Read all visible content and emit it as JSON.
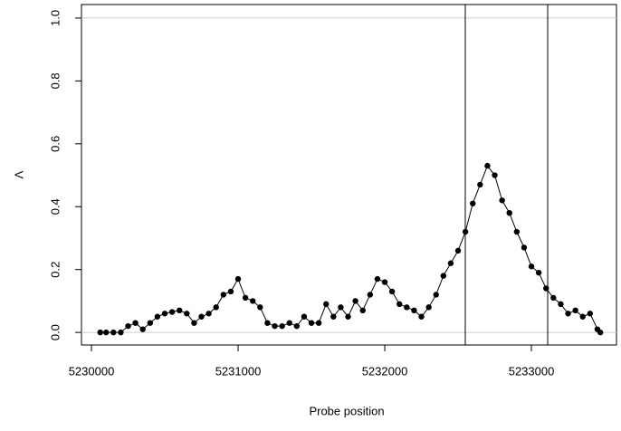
{
  "chart_data": {
    "type": "line",
    "x_label": "Probe position",
    "y_label": "Λ",
    "x": [
      5230060,
      5230100,
      5230150,
      5230200,
      5230250,
      5230300,
      5230350,
      5230400,
      5230450,
      5230500,
      5230550,
      5230600,
      5230650,
      5230700,
      5230750,
      5230800,
      5230850,
      5230900,
      5230950,
      5231000,
      5231050,
      5231100,
      5231150,
      5231200,
      5231250,
      5231300,
      5231350,
      5231400,
      5231450,
      5231500,
      5231550,
      5231600,
      5231650,
      5231700,
      5231750,
      5231800,
      5231850,
      5231900,
      5231950,
      5232000,
      5232050,
      5232100,
      5232150,
      5232200,
      5232250,
      5232300,
      5232350,
      5232400,
      5232450,
      5232500,
      5232550,
      5232600,
      5232650,
      5232700,
      5232750,
      5232800,
      5232850,
      5232900,
      5232950,
      5233000,
      5233050,
      5233100,
      5233150,
      5233200,
      5233250,
      5233300,
      5233350,
      5233400,
      5233450,
      5233470
    ],
    "series": [
      {
        "name": "Λ",
        "color": "#000000",
        "values": [
          0.0,
          0.0,
          0.0,
          0.0,
          0.02,
          0.03,
          0.01,
          0.03,
          0.05,
          0.06,
          0.065,
          0.07,
          0.06,
          0.03,
          0.05,
          0.06,
          0.08,
          0.12,
          0.13,
          0.17,
          0.11,
          0.1,
          0.08,
          0.03,
          0.02,
          0.02,
          0.03,
          0.02,
          0.05,
          0.03,
          0.03,
          0.09,
          0.05,
          0.08,
          0.05,
          0.1,
          0.07,
          0.12,
          0.17,
          0.16,
          0.13,
          0.09,
          0.08,
          0.07,
          0.05,
          0.08,
          0.12,
          0.18,
          0.22,
          0.26,
          0.32,
          0.41,
          0.47,
          0.53,
          0.5,
          0.42,
          0.38,
          0.32,
          0.27,
          0.21,
          0.19,
          0.14,
          0.11,
          0.09,
          0.06,
          0.07,
          0.05,
          0.06,
          0.01,
          0.0
        ]
      }
    ],
    "xlim": [
      5229932,
      5233580
    ],
    "ylim": [
      -0.04,
      1.043
    ],
    "xticks": [
      5230000,
      5231000,
      5232000,
      5233000
    ],
    "yticks": [
      {
        "value": 0,
        "label": "0.0"
      },
      0.2,
      0.4,
      0.6,
      0.8,
      {
        "value": 1,
        "label": "1.0"
      }
    ],
    "hlines": [
      0,
      1
    ],
    "vlines": [
      5232549,
      5233111
    ]
  }
}
